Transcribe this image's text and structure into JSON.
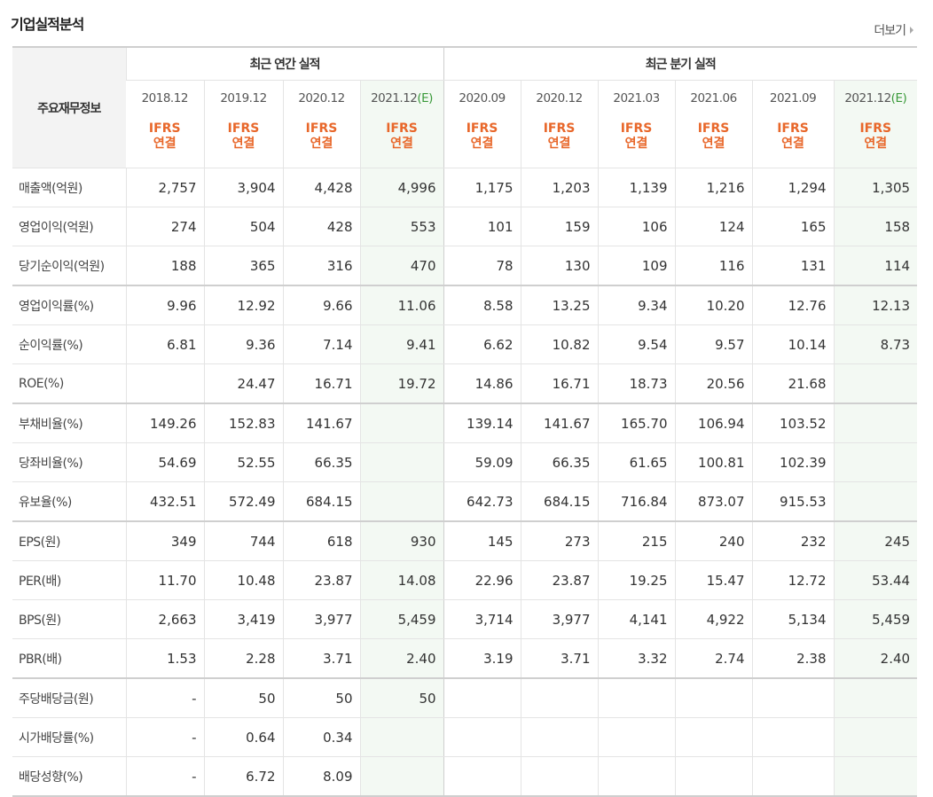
{
  "title": "기업실적분석",
  "more_label": "더보기",
  "table": {
    "head_label": "주요재무정보",
    "annual_group": "최근 연간 실적",
    "quarter_group": "최근 분기 실적",
    "periods": [
      {
        "label": "2018.12",
        "est": "",
        "estimate": false
      },
      {
        "label": "2019.12",
        "est": "",
        "estimate": false
      },
      {
        "label": "2020.12",
        "est": "",
        "estimate": false
      },
      {
        "label": "2021.12",
        "est": "(E)",
        "estimate": true
      },
      {
        "label": "2020.09",
        "est": "",
        "estimate": false
      },
      {
        "label": "2020.12",
        "est": "",
        "estimate": false
      },
      {
        "label": "2021.03",
        "est": "",
        "estimate": false
      },
      {
        "label": "2021.06",
        "est": "",
        "estimate": false
      },
      {
        "label": "2021.09",
        "est": "",
        "estimate": false
      },
      {
        "label": "2021.12",
        "est": "(E)",
        "estimate": true
      }
    ],
    "standard_line1": "IFRS",
    "standard_line2": "연결",
    "rows": [
      {
        "label": "매출액(억원)",
        "values": [
          "2,757",
          "3,904",
          "4,428",
          "4,996",
          "1,175",
          "1,203",
          "1,139",
          "1,216",
          "1,294",
          "1,305"
        ]
      },
      {
        "label": "영업이익(억원)",
        "values": [
          "274",
          "504",
          "428",
          "553",
          "101",
          "159",
          "106",
          "124",
          "165",
          "158"
        ]
      },
      {
        "label": "당기순이익(억원)",
        "values": [
          "188",
          "365",
          "316",
          "470",
          "78",
          "130",
          "109",
          "116",
          "131",
          "114"
        ]
      },
      {
        "label": "영업이익률(%)",
        "values": [
          "9.96",
          "12.92",
          "9.66",
          "11.06",
          "8.58",
          "13.25",
          "9.34",
          "10.20",
          "12.76",
          "12.13"
        ]
      },
      {
        "label": "순이익률(%)",
        "values": [
          "6.81",
          "9.36",
          "7.14",
          "9.41",
          "6.62",
          "10.82",
          "9.54",
          "9.57",
          "10.14",
          "8.73"
        ]
      },
      {
        "label": "ROE(%)",
        "values": [
          "",
          "24.47",
          "16.71",
          "19.72",
          "14.86",
          "16.71",
          "18.73",
          "20.56",
          "21.68",
          ""
        ]
      },
      {
        "label": "부채비율(%)",
        "values": [
          "149.26",
          "152.83",
          "141.67",
          "",
          "139.14",
          "141.67",
          "165.70",
          "106.94",
          "103.52",
          ""
        ]
      },
      {
        "label": "당좌비율(%)",
        "values": [
          "54.69",
          "52.55",
          "66.35",
          "",
          "59.09",
          "66.35",
          "61.65",
          "100.81",
          "102.39",
          ""
        ]
      },
      {
        "label": "유보율(%)",
        "values": [
          "432.51",
          "572.49",
          "684.15",
          "",
          "642.73",
          "684.15",
          "716.84",
          "873.07",
          "915.53",
          ""
        ]
      },
      {
        "label": "EPS(원)",
        "values": [
          "349",
          "744",
          "618",
          "930",
          "145",
          "273",
          "215",
          "240",
          "232",
          "245"
        ]
      },
      {
        "label": "PER(배)",
        "values": [
          "11.70",
          "10.48",
          "23.87",
          "14.08",
          "22.96",
          "23.87",
          "19.25",
          "15.47",
          "12.72",
          "53.44"
        ]
      },
      {
        "label": "BPS(원)",
        "values": [
          "2,663",
          "3,419",
          "3,977",
          "5,459",
          "3,714",
          "3,977",
          "4,141",
          "4,922",
          "5,134",
          "5,459"
        ]
      },
      {
        "label": "PBR(배)",
        "values": [
          "1.53",
          "2.28",
          "3.71",
          "2.40",
          "3.19",
          "3.71",
          "3.32",
          "2.74",
          "2.38",
          "2.40"
        ]
      },
      {
        "label": "주당배당금(원)",
        "values": [
          "-",
          "50",
          "50",
          "50",
          "",
          "",
          "",
          "",
          "",
          ""
        ]
      },
      {
        "label": "시가배당률(%)",
        "values": [
          "-",
          "0.64",
          "0.34",
          "",
          "",
          "",
          "",
          "",
          "",
          ""
        ]
      },
      {
        "label": "배당성향(%)",
        "values": [
          "-",
          "6.72",
          "8.09",
          "",
          "",
          "",
          "",
          "",
          "",
          ""
        ]
      }
    ],
    "colors": {
      "ifrs_label": "#e8672a",
      "estimate_tag": "#3a9a3a",
      "estimate_column_bg": "#f3f9f3",
      "header_bg": "#f3f3f3"
    }
  }
}
